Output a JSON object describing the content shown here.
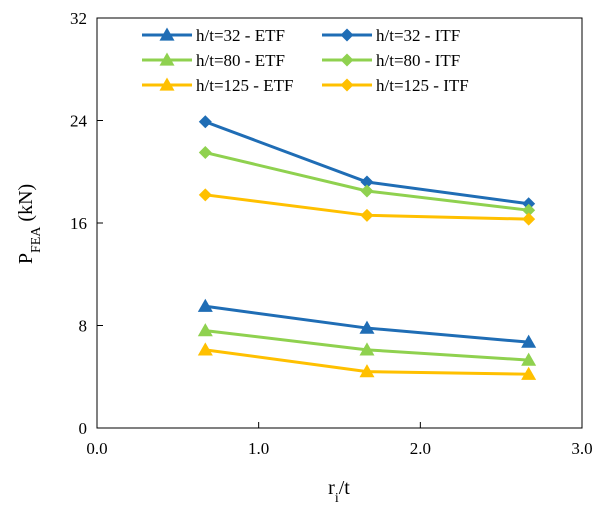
{
  "chart_data": {
    "type": "line",
    "xlabel": "r",
    "xlabel_sub": "i",
    "xlabel_suffix": "/t",
    "ylabel": "P",
    "ylabel_sub": "FEA",
    "ylabel_suffix": " (kN)",
    "xlim": [
      0,
      3
    ],
    "ylim": [
      0,
      32
    ],
    "x_ticks": [
      0,
      1,
      2,
      3
    ],
    "x_tick_labels": [
      "0.0",
      "1.0",
      "2.0",
      "3.0"
    ],
    "y_ticks": [
      0,
      8,
      16,
      24,
      32
    ],
    "y_tick_labels": [
      "0",
      "8",
      "16",
      "24",
      "32"
    ],
    "grid": false,
    "legend_position": "top",
    "x": [
      0.67,
      1.67,
      2.67
    ],
    "series": [
      {
        "name": "h/t=32 - ETF",
        "marker": "triangle",
        "color": "#1f6db5",
        "values": [
          9.5,
          7.8,
          6.7
        ]
      },
      {
        "name": "h/t=32 - ITF",
        "marker": "diamond",
        "color": "#1f6db5",
        "values": [
          23.9,
          19.2,
          17.5
        ]
      },
      {
        "name": "h/t=80 - ETF",
        "marker": "triangle",
        "color": "#8fd14f",
        "values": [
          7.6,
          6.1,
          5.3
        ]
      },
      {
        "name": "h/t=80 - ITF",
        "marker": "diamond",
        "color": "#8fd14f",
        "values": [
          21.5,
          18.5,
          17.0
        ]
      },
      {
        "name": "h/t=125 - ETF",
        "marker": "triangle",
        "color": "#ffc000",
        "values": [
          6.1,
          4.4,
          4.2
        ]
      },
      {
        "name": "h/t=125 - ITF",
        "marker": "diamond",
        "color": "#ffc000",
        "values": [
          18.2,
          16.6,
          16.3
        ]
      }
    ]
  }
}
